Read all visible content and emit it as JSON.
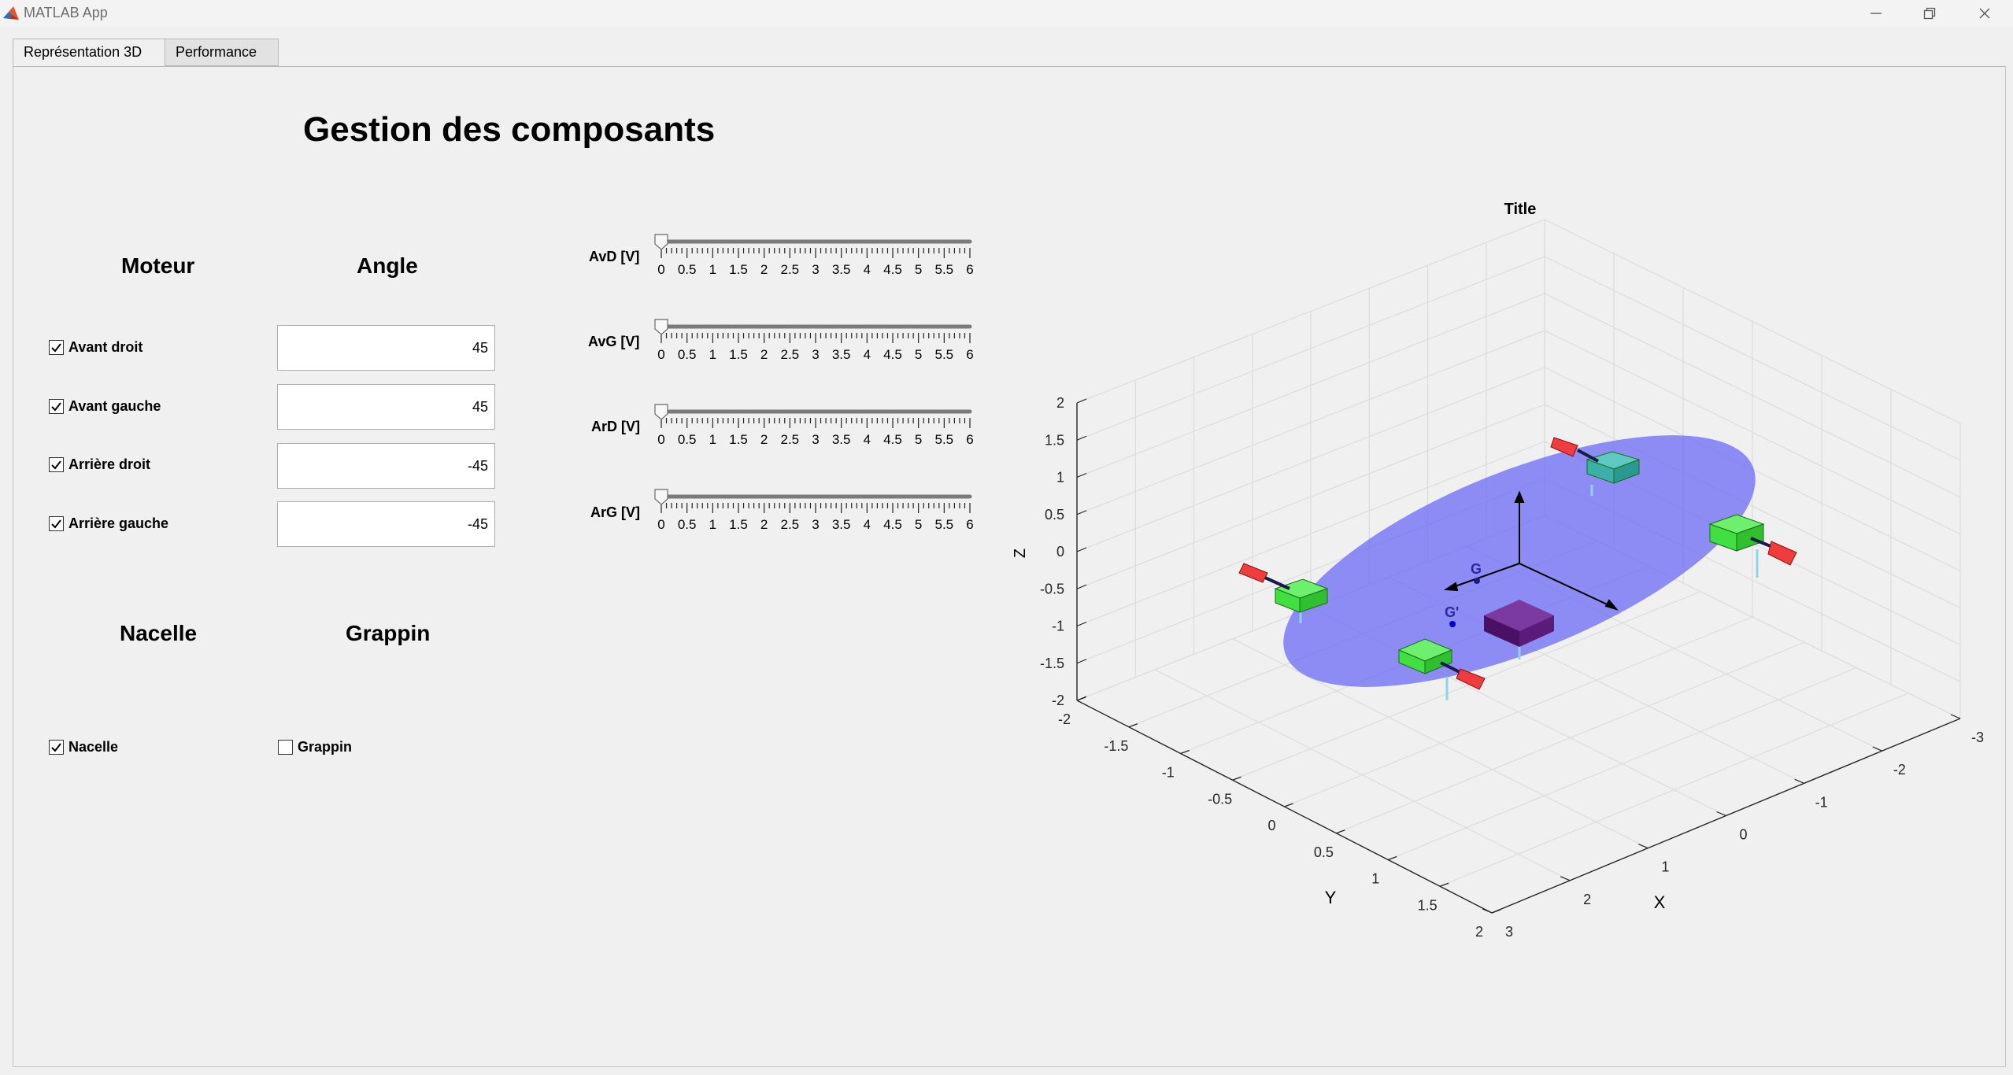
{
  "window": {
    "title": "MATLAB App",
    "minimize_icon": "minimize-icon",
    "maximize_icon": "restore-icon",
    "close_icon": "close-icon"
  },
  "tabs": [
    {
      "label": "Représentation 3D",
      "active": true
    },
    {
      "label": "Performance",
      "active": false
    }
  ],
  "page": {
    "title": "Gestion des composants",
    "headers": {
      "motor": "Moteur",
      "angle": "Angle",
      "nacelle": "Nacelle",
      "grappin": "Grappin"
    }
  },
  "motors": [
    {
      "label": "Avant droit",
      "checked": true,
      "angle": "45"
    },
    {
      "label": "Avant gauche",
      "checked": true,
      "angle": "45"
    },
    {
      "label": "Arrière droit",
      "checked": true,
      "angle": "-45"
    },
    {
      "label": "Arrière gauche",
      "checked": true,
      "angle": "-45"
    }
  ],
  "options": {
    "nacelle": {
      "label": "Nacelle",
      "checked": true
    },
    "grappin": {
      "label": "Grappin",
      "checked": false
    }
  },
  "sliders": {
    "min": 0,
    "max": 6,
    "tick_labels": [
      "0",
      "0.5",
      "1",
      "1.5",
      "2",
      "2.5",
      "3",
      "3.5",
      "4",
      "4.5",
      "5",
      "5.5",
      "6"
    ],
    "items": [
      {
        "label": "AvD [V]",
        "value": 0
      },
      {
        "label": "AvG [V]",
        "value": 0
      },
      {
        "label": "ArD [V]",
        "value": 0
      },
      {
        "label": "ArG [V]",
        "value": 0
      }
    ]
  },
  "plot": {
    "title": "Title",
    "xlabel": "X",
    "ylabel": "Y",
    "zlabel": "Z",
    "x_ticks": [
      "3",
      "2",
      "1",
      "0",
      "-1",
      "-2",
      "-3"
    ],
    "y_ticks": [
      "-2",
      "-1.5",
      "-1",
      "-0.5",
      "0",
      "0.5",
      "1",
      "1.5",
      "2"
    ],
    "z_ticks": [
      "2",
      "1.5",
      "1",
      "0.5",
      "0",
      "-0.5",
      "-1",
      "-1.5",
      "-2"
    ],
    "markers": {
      "g": "G",
      "g_prime": "G'"
    },
    "colors": {
      "disk": "#6f6ff5",
      "motor_box": "#3fe03f",
      "propeller": "#f03c3c",
      "nacelle": "#5a1b7a",
      "cable": "#8fd3ea"
    }
  }
}
